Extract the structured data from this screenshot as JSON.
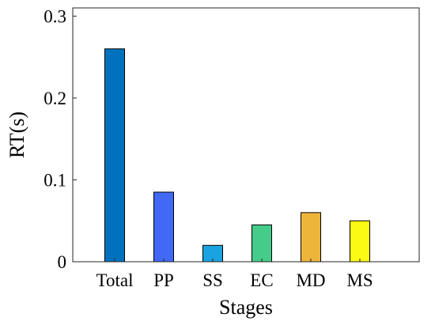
{
  "chart_data": {
    "type": "bar",
    "categories": [
      "Total",
      "PP",
      "SS",
      "EC",
      "MD",
      "MS"
    ],
    "values": [
      0.26,
      0.085,
      0.02,
      0.045,
      0.06,
      0.05
    ],
    "colors": [
      "#0072BD",
      "#4169F5",
      "#1AA3E0",
      "#45CC8A",
      "#EDB53A",
      "#FAFA14"
    ],
    "xlabel": "Stages",
    "ylabel": "RT(s)",
    "ylim": [
      0,
      0.31
    ],
    "yticks": [
      0,
      0.1,
      0.2,
      0.3
    ],
    "ytick_labels": [
      "0",
      "0.1",
      "0.2",
      "0.3"
    ],
    "grid": false,
    "box": true
  }
}
